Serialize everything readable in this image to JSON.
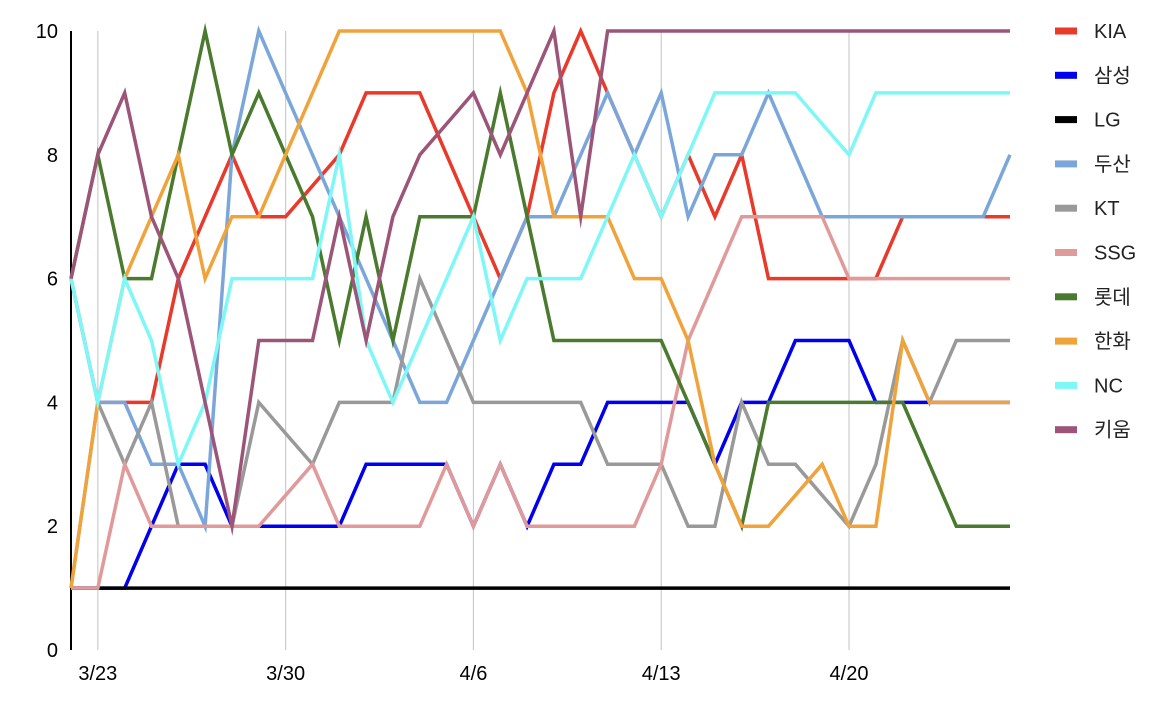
{
  "chart_data": {
    "type": "line",
    "title": "",
    "xlabel": "",
    "ylabel": "",
    "ylim": [
      0,
      10
    ],
    "y_ticks": [
      0,
      2,
      4,
      6,
      8,
      10
    ],
    "x_ticks": [
      {
        "label": "3/23",
        "x": 1
      },
      {
        "label": "3/30",
        "x": 8
      },
      {
        "label": "4/6",
        "x": 15
      },
      {
        "label": "4/13",
        "x": 22
      },
      {
        "label": "4/20",
        "x": 29
      }
    ],
    "x": [
      0,
      1,
      2,
      3,
      4,
      5,
      6,
      7,
      8,
      9,
      10,
      11,
      12,
      13,
      14,
      15,
      16,
      17,
      18,
      19,
      20,
      21,
      22,
      23,
      24,
      25,
      26,
      27,
      28,
      29,
      30,
      31,
      32,
      33,
      34,
      35
    ],
    "grid": "vertical",
    "legend_position": "right",
    "series": [
      {
        "name": "KIA",
        "color": "#e8392a",
        "values": [
          6,
          4,
          4,
          4,
          6,
          7,
          8,
          7,
          7,
          7.5,
          8,
          9,
          9,
          9,
          8,
          7,
          6,
          7,
          9,
          10,
          9,
          8,
          7,
          8,
          7,
          8,
          6,
          6,
          6,
          6,
          6,
          7,
          7,
          7,
          7,
          7
        ]
      },
      {
        "name": "삼성",
        "color": "#0000ee",
        "values": [
          1,
          1,
          1,
          2,
          3,
          3,
          2,
          2,
          2,
          2,
          2,
          3,
          3,
          3,
          3,
          2,
          3,
          2,
          3,
          3,
          4,
          4,
          4,
          4,
          3,
          4,
          4,
          5,
          5,
          5,
          4,
          4,
          4,
          4,
          4,
          4
        ]
      },
      {
        "name": "LG",
        "color": "#000000",
        "values": [
          1,
          1,
          1,
          1,
          1,
          1,
          1,
          1,
          1,
          1,
          1,
          1,
          1,
          1,
          1,
          1,
          1,
          1,
          1,
          1,
          1,
          1,
          1,
          1,
          1,
          1,
          1,
          1,
          1,
          1,
          1,
          1,
          1,
          1,
          1,
          1
        ]
      },
      {
        "name": "두산",
        "color": "#7ba6d9",
        "values": [
          6,
          4,
          4,
          3,
          3,
          2,
          8,
          10,
          9,
          8,
          7,
          6,
          5,
          4,
          4,
          5,
          6,
          7,
          7,
          8,
          9,
          8,
          9,
          7,
          8,
          8,
          9,
          8,
          7,
          7,
          7,
          7,
          7,
          7,
          7,
          8
        ]
      },
      {
        "name": "KT",
        "color": "#999999",
        "values": [
          1,
          4,
          3,
          4,
          2,
          2,
          2,
          4,
          3.5,
          3,
          4,
          4,
          4,
          6,
          5,
          4,
          4,
          4,
          4,
          4,
          3,
          3,
          3,
          2,
          2,
          4,
          3,
          3,
          2.5,
          2,
          3,
          5,
          4,
          5,
          5,
          5
        ]
      },
      {
        "name": "SSG",
        "color": "#e09a9a",
        "values": [
          1,
          1,
          3,
          2,
          2,
          2,
          2,
          2,
          2.5,
          3,
          2,
          2,
          2,
          2,
          3,
          2,
          3,
          2,
          2,
          2,
          2,
          2,
          3,
          5,
          6,
          7,
          7,
          7,
          7,
          6,
          6,
          6,
          6,
          6,
          6,
          6
        ]
      },
      {
        "name": "롯데",
        "color": "#4a7a2e",
        "values": [
          6,
          8,
          6,
          6,
          8,
          10,
          8,
          9,
          8,
          7,
          5,
          7,
          5,
          7,
          7,
          7,
          9,
          7,
          5,
          5,
          5,
          5,
          5,
          4,
          3,
          2,
          4,
          4,
          4,
          4,
          4,
          4,
          3,
          2,
          2,
          2
        ]
      },
      {
        "name": "한화",
        "color": "#f0a33a",
        "values": [
          1,
          4,
          6,
          7,
          8,
          6,
          7,
          7,
          8,
          9,
          10,
          10,
          10,
          10,
          10,
          10,
          10,
          9,
          7,
          7,
          7,
          6,
          6,
          5,
          3,
          2,
          2,
          2.5,
          3,
          2,
          2,
          5,
          4,
          4,
          4,
          4
        ]
      },
      {
        "name": "NC",
        "color": "#7ef7f7",
        "values": [
          6,
          4,
          6,
          5,
          3,
          4,
          6,
          6,
          6,
          6,
          8,
          5,
          4,
          5,
          6,
          7,
          5,
          6,
          6,
          6,
          7,
          8,
          7,
          8,
          9,
          9,
          9,
          9,
          8.5,
          8,
          9,
          9,
          9,
          9,
          9,
          9
        ]
      },
      {
        "name": "키움",
        "color": "#9c5579",
        "values": [
          6,
          8,
          9,
          7,
          6,
          4,
          2,
          5,
          5,
          5,
          7,
          5,
          7,
          8,
          8.5,
          9,
          8,
          9,
          10,
          7,
          10,
          10,
          10,
          10,
          10,
          10,
          10,
          10,
          10,
          10,
          10,
          10,
          10,
          10,
          10,
          10
        ]
      }
    ]
  }
}
